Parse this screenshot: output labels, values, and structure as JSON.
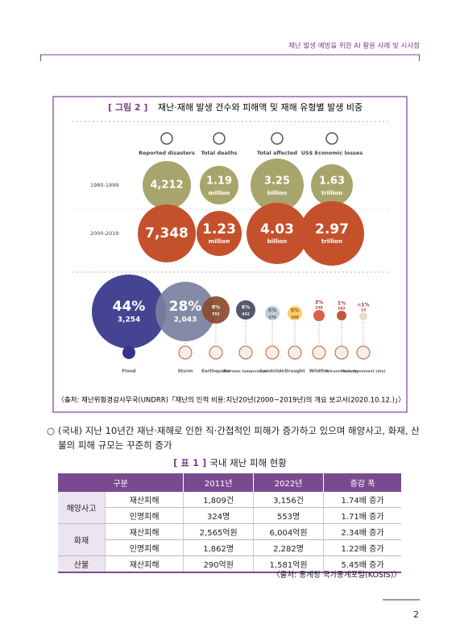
{
  "header": {
    "running_title": "재난 발생 예방을 위한 AI 활용 사례 및 시사점"
  },
  "figure": {
    "caption_label": "[ 그림 2 ]",
    "caption": "재난·재해 발생 건수와 피해액 및 재해 유형별 발생 비중",
    "columns": [
      "Reported disasters",
      "Total deaths",
      "Total affected",
      "US$ Economic losses"
    ],
    "rows": [
      {
        "label": "1980-1999",
        "values": [
          "4,212",
          "1.19",
          "3.25",
          "1.63"
        ],
        "units": [
          null,
          "million",
          "billion",
          "trillion"
        ]
      },
      {
        "label": "2000-2019",
        "values": [
          "7,348",
          "1.23",
          "4.03",
          "2.97"
        ],
        "units": [
          null,
          "million",
          "billion",
          "trillion"
        ]
      }
    ],
    "types": [
      {
        "percent": "44%",
        "count": "3,254",
        "name": "Flood"
      },
      {
        "percent": "28%",
        "count": "2,043",
        "name": "Storm"
      },
      {
        "percent": "8%",
        "count": "552",
        "name": "Earthquake"
      },
      {
        "percent": "6%",
        "count": "432",
        "name": "Extreme temperature"
      },
      {
        "percent": "5%",
        "count": "376",
        "name": "Landslide"
      },
      {
        "percent": "5%",
        "count": "338",
        "name": "Drought"
      },
      {
        "percent": "3%",
        "count": "238",
        "name": "Wildfire"
      },
      {
        "percent": "1%",
        "count": "102",
        "name": "Volcanic activity"
      },
      {
        "percent": "<1%",
        "count": "13",
        "name": "Mass movement (dry)"
      }
    ],
    "source": "〈출처: 재난위험경감사무국(UNDRR)「재난의 인적 비용:지난20년(2000~2019년)의 개요 보고서(2020.10.12.)」〉"
  },
  "paragraph": {
    "bullet": "○",
    "text": "(국내) 지난 10년간 재난·재해로 인한 직·간접적인 피해가 증가하고 있으며 해양사고, 화재, 산불의 피해 규모는 꾸준히 증가"
  },
  "table": {
    "caption_label": "[ 표 1 ]",
    "caption": "국내 재난 피해 현황",
    "headers": [
      "구분",
      "2011년",
      "2022년",
      "증감 폭"
    ],
    "groups": [
      {
        "name": "해양사고",
        "rows": [
          [
            "재산피해",
            "1,809건",
            "3,156건",
            "1.74배 증가"
          ],
          [
            "인명피해",
            "324명",
            "553명",
            "1.71배 증가"
          ]
        ]
      },
      {
        "name": "화재",
        "rows": [
          [
            "재산피해",
            "2,565억원",
            "6,004억원",
            "2.34배 증가"
          ],
          [
            "인명피해",
            "1,862명",
            "2,282명",
            "1.22배 증가"
          ]
        ]
      },
      {
        "name": "산불",
        "rows": [
          [
            "재산피해",
            "290억원",
            "1,581억원",
            "5.45배 증가"
          ]
        ]
      }
    ],
    "source": "〈출처: 통계청 국가통계포털(KOSIS)〉"
  },
  "page_number": "2"
}
